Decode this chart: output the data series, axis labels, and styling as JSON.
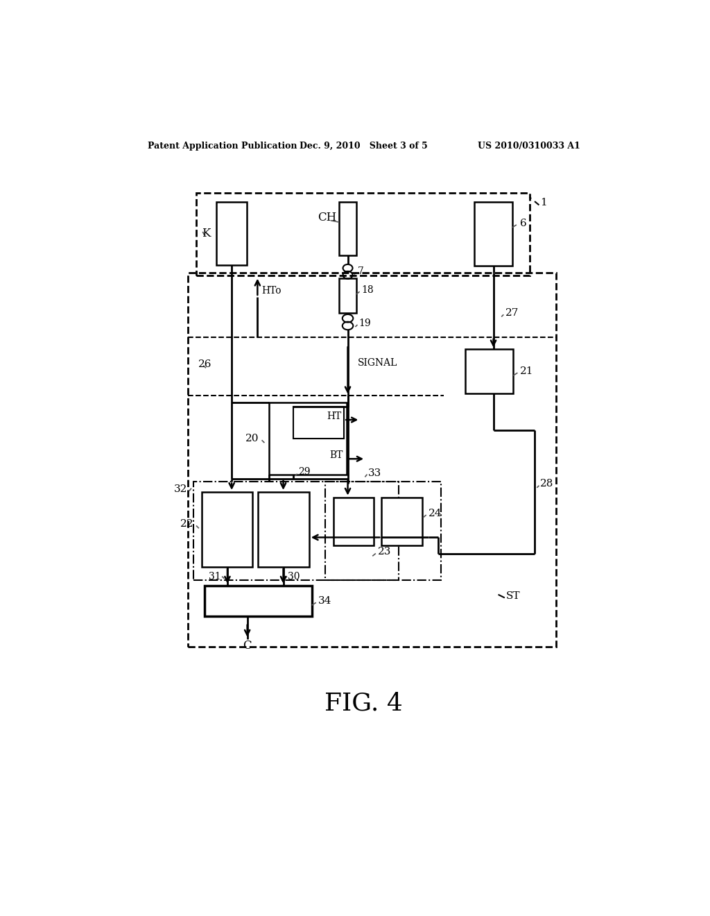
{
  "bg_color": "#ffffff",
  "header_left": "Patent Application Publication",
  "header_mid": "Dec. 9, 2010   Sheet 3 of 5",
  "header_right": "US 2010/0310033 A1",
  "fig_label": "FIG. 4"
}
